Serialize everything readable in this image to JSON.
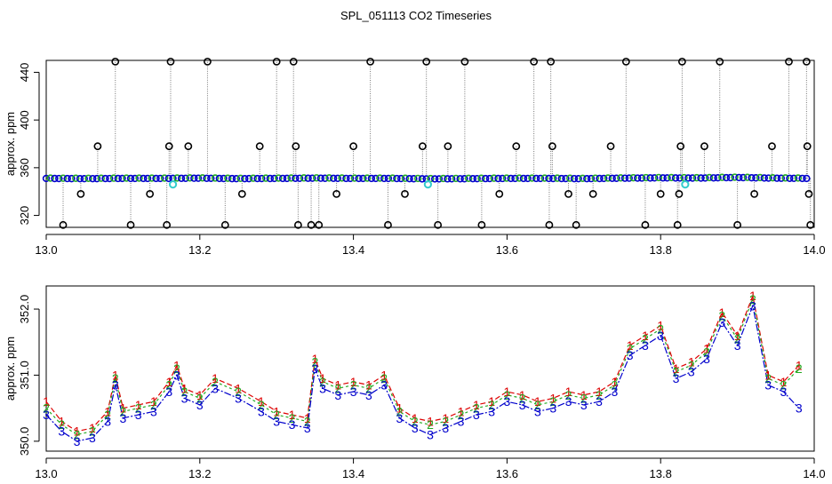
{
  "title": "SPL_051113  CO2 Timeseries",
  "colors": {
    "series_1": "#dd0000",
    "series_2": "#22aa22",
    "series_3": "#0000cc",
    "spike": "#000000",
    "cyan_point": "#33cccc",
    "connector": "#777777"
  },
  "chart_data": [
    {
      "type": "scatter",
      "panel": "top",
      "xlabel": "",
      "ylabel": "approx. ppm",
      "xlim": [
        13.0,
        14.0
      ],
      "ylim": [
        310,
        450
      ],
      "x_ticks": [
        "13.0",
        "13.2",
        "13.4",
        "13.6",
        "13.8",
        "14.0"
      ],
      "y_ticks": [
        "320",
        "360",
        "400",
        "440"
      ],
      "grid": false,
      "baseline": [
        [
          13.0,
          351.0
        ],
        [
          13.05,
          350.8
        ],
        [
          13.1,
          351.0
        ],
        [
          13.15,
          351.0
        ],
        [
          13.2,
          351.2
        ],
        [
          13.25,
          350.8
        ],
        [
          13.3,
          351.0
        ],
        [
          13.35,
          351.2
        ],
        [
          13.4,
          351.0
        ],
        [
          13.45,
          351.0
        ],
        [
          13.5,
          350.6
        ],
        [
          13.55,
          350.8
        ],
        [
          13.6,
          351.0
        ],
        [
          13.65,
          351.0
        ],
        [
          13.7,
          350.8
        ],
        [
          13.75,
          351.2
        ],
        [
          13.8,
          351.5
        ],
        [
          13.85,
          351.3
        ],
        [
          13.9,
          351.8
        ],
        [
          13.95,
          351.2
        ],
        [
          13.99,
          351.0
        ]
      ],
      "spikes": [
        [
          13.022,
          312
        ],
        [
          13.045,
          338
        ],
        [
          13.067,
          378
        ],
        [
          13.09,
          449
        ],
        [
          13.11,
          312
        ],
        [
          13.135,
          338
        ],
        [
          13.157,
          312
        ],
        [
          13.16,
          378
        ],
        [
          13.162,
          449
        ],
        [
          13.185,
          378
        ],
        [
          13.21,
          449
        ],
        [
          13.233,
          312
        ],
        [
          13.255,
          338
        ],
        [
          13.278,
          378
        ],
        [
          13.3,
          449
        ],
        [
          13.322,
          449
        ],
        [
          13.325,
          378
        ],
        [
          13.328,
          312
        ],
        [
          13.345,
          312
        ],
        [
          13.355,
          312
        ],
        [
          13.378,
          338
        ],
        [
          13.4,
          378
        ],
        [
          13.422,
          449
        ],
        [
          13.445,
          312
        ],
        [
          13.467,
          338
        ],
        [
          13.49,
          378
        ],
        [
          13.495,
          449
        ],
        [
          13.51,
          312
        ],
        [
          13.523,
          378
        ],
        [
          13.545,
          449
        ],
        [
          13.567,
          312
        ],
        [
          13.59,
          338
        ],
        [
          13.612,
          378
        ],
        [
          13.635,
          449
        ],
        [
          13.655,
          312
        ],
        [
          13.657,
          449
        ],
        [
          13.659,
          378
        ],
        [
          13.68,
          338
        ],
        [
          13.69,
          312
        ],
        [
          13.712,
          338
        ],
        [
          13.735,
          378
        ],
        [
          13.755,
          449
        ],
        [
          13.78,
          312
        ],
        [
          13.8,
          338
        ],
        [
          13.822,
          312
        ],
        [
          13.824,
          338
        ],
        [
          13.826,
          378
        ],
        [
          13.828,
          449
        ],
        [
          13.857,
          378
        ],
        [
          13.877,
          449
        ],
        [
          13.9,
          312
        ],
        [
          13.922,
          338
        ],
        [
          13.945,
          378
        ],
        [
          13.967,
          449
        ],
        [
          13.99,
          449
        ],
        [
          13.991,
          378
        ],
        [
          13.993,
          338
        ],
        [
          13.995,
          312
        ]
      ],
      "cyan_points": [
        [
          13.165,
          346
        ],
        [
          13.497,
          346
        ],
        [
          13.832,
          346
        ]
      ]
    },
    {
      "type": "line",
      "panel": "bottom",
      "xlabel": "",
      "ylabel": "approx. ppm",
      "xlim": [
        13.0,
        14.0
      ],
      "ylim": [
        349.85,
        352.35
      ],
      "x_ticks": [
        "13.0",
        "13.2",
        "13.4",
        "13.6",
        "13.8",
        "14.0"
      ],
      "y_ticks": [
        "350.0",
        "351.0",
        "352.0"
      ],
      "grid": false,
      "series": [
        {
          "name": "1",
          "x": [
            13.0,
            13.02,
            13.04,
            13.06,
            13.08,
            13.09,
            13.1,
            13.12,
            13.14,
            13.16,
            13.17,
            13.18,
            13.2,
            13.22,
            13.25,
            13.28,
            13.3,
            13.32,
            13.34,
            13.35,
            13.36,
            13.38,
            13.4,
            13.42,
            13.44,
            13.46,
            13.48,
            13.5,
            13.52,
            13.54,
            13.56,
            13.58,
            13.6,
            13.62,
            13.64,
            13.66,
            13.68,
            13.7,
            13.72,
            13.74,
            13.76,
            13.78,
            13.8,
            13.82,
            13.84,
            13.86,
            13.88,
            13.9,
            13.92,
            13.94,
            13.96,
            13.98
          ],
          "y": [
            350.6,
            350.3,
            350.15,
            350.2,
            350.45,
            351.0,
            350.5,
            350.55,
            350.6,
            350.9,
            351.15,
            350.8,
            350.7,
            350.95,
            350.8,
            350.6,
            350.45,
            350.4,
            350.35,
            351.25,
            350.95,
            350.85,
            350.9,
            350.85,
            351.0,
            350.5,
            350.35,
            350.3,
            350.35,
            350.45,
            350.55,
            350.6,
            350.75,
            350.7,
            350.6,
            350.65,
            350.75,
            350.7,
            350.75,
            350.9,
            351.45,
            351.6,
            351.75,
            351.1,
            351.2,
            351.4,
            351.95,
            351.6,
            352.2,
            351.0,
            350.9,
            351.15
          ]
        },
        {
          "name": "2",
          "x": [
            13.0,
            13.02,
            13.04,
            13.06,
            13.08,
            13.09,
            13.1,
            13.12,
            13.14,
            13.16,
            13.17,
            13.18,
            13.2,
            13.22,
            13.25,
            13.28,
            13.3,
            13.32,
            13.34,
            13.35,
            13.36,
            13.38,
            13.4,
            13.42,
            13.44,
            13.46,
            13.48,
            13.5,
            13.52,
            13.54,
            13.56,
            13.58,
            13.6,
            13.62,
            13.64,
            13.66,
            13.68,
            13.7,
            13.72,
            13.74,
            13.76,
            13.78,
            13.8,
            13.82,
            13.84,
            13.86,
            13.88,
            13.9,
            13.92,
            13.94,
            13.96,
            13.98
          ],
          "y": [
            350.5,
            350.25,
            350.1,
            350.15,
            350.4,
            350.95,
            350.45,
            350.5,
            350.55,
            350.85,
            351.1,
            350.75,
            350.65,
            350.9,
            350.75,
            350.55,
            350.4,
            350.35,
            350.3,
            351.2,
            350.9,
            350.8,
            350.85,
            350.8,
            350.95,
            350.45,
            350.3,
            350.25,
            350.3,
            350.4,
            350.5,
            350.55,
            350.7,
            350.65,
            350.55,
            350.6,
            350.7,
            350.65,
            350.7,
            350.85,
            351.4,
            351.55,
            351.7,
            351.05,
            351.15,
            351.35,
            351.9,
            351.55,
            352.15,
            350.95,
            350.85,
            351.1
          ]
        },
        {
          "name": "3",
          "x": [
            13.0,
            13.02,
            13.04,
            13.06,
            13.08,
            13.09,
            13.1,
            13.12,
            13.14,
            13.16,
            13.17,
            13.18,
            13.2,
            13.22,
            13.25,
            13.28,
            13.3,
            13.32,
            13.34,
            13.35,
            13.36,
            13.38,
            13.4,
            13.42,
            13.44,
            13.46,
            13.48,
            13.5,
            13.52,
            13.54,
            13.56,
            13.58,
            13.6,
            13.62,
            13.64,
            13.66,
            13.68,
            13.7,
            13.72,
            13.74,
            13.76,
            13.78,
            13.8,
            13.82,
            13.84,
            13.86,
            13.88,
            13.9,
            13.92,
            13.94,
            13.96,
            13.98
          ],
          "y": [
            350.4,
            350.15,
            350.0,
            350.05,
            350.3,
            350.85,
            350.35,
            350.4,
            350.45,
            350.75,
            351.0,
            350.65,
            350.55,
            350.8,
            350.65,
            350.45,
            350.3,
            350.25,
            350.2,
            351.1,
            350.8,
            350.7,
            350.75,
            350.7,
            350.85,
            350.35,
            350.2,
            350.1,
            350.2,
            350.3,
            350.4,
            350.45,
            350.6,
            350.55,
            350.45,
            350.5,
            350.6,
            350.55,
            350.6,
            350.75,
            351.3,
            351.45,
            351.6,
            350.95,
            351.05,
            351.25,
            351.8,
            351.45,
            352.05,
            350.85,
            350.75,
            350.5
          ]
        }
      ]
    }
  ]
}
